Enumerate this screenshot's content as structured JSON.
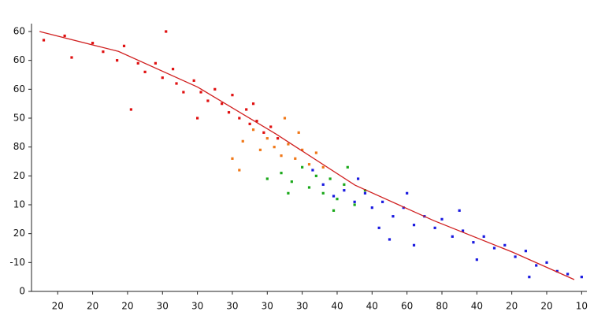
{
  "chart_data": {
    "type": "scatter",
    "xlim": [
      -0.75,
      15.15
    ],
    "ylim": [
      0,
      9
    ],
    "xticks": [
      {
        "value": 0,
        "label": "20"
      },
      {
        "value": 1,
        "label": "20"
      },
      {
        "value": 2,
        "label": "20"
      },
      {
        "value": 3,
        "label": "30"
      },
      {
        "value": 4,
        "label": "30"
      },
      {
        "value": 5,
        "label": "30"
      },
      {
        "value": 6,
        "label": "30"
      },
      {
        "value": 7,
        "label": "30"
      },
      {
        "value": 8,
        "label": "40"
      },
      {
        "value": 9,
        "label": "40"
      },
      {
        "value": 10,
        "label": "60"
      },
      {
        "value": 11,
        "label": "80"
      },
      {
        "value": 12,
        "label": "40"
      },
      {
        "value": 13,
        "label": "20"
      },
      {
        "value": 14,
        "label": "20"
      },
      {
        "value": 15,
        "label": "10"
      }
    ],
    "yticks": [
      {
        "value": 0,
        "label": "0"
      },
      {
        "value": 1,
        "label": "-10"
      },
      {
        "value": 2,
        "label": "20"
      },
      {
        "value": 3,
        "label": "10"
      },
      {
        "value": 4,
        "label": "20"
      },
      {
        "value": 5,
        "label": "80"
      },
      {
        "value": 6,
        "label": "50"
      },
      {
        "value": 7,
        "label": "60"
      },
      {
        "value": 8,
        "label": "60"
      },
      {
        "value": 9,
        "label": "60"
      }
    ],
    "series": [
      {
        "color": "#e01010",
        "x": [
          -0.4,
          0.2,
          0.4,
          1.0,
          1.3,
          1.7,
          1.9,
          2.3,
          2.5,
          2.8,
          3.0,
          3.1,
          3.4,
          3.6,
          3.9,
          4.1,
          4.3,
          4.5,
          4.7,
          4.9,
          5.0,
          5.2,
          5.4,
          5.5,
          5.7,
          5.9,
          6.1,
          2.1,
          4.0,
          6.3,
          5.6,
          3.3
        ],
        "values": [
          8.7,
          8.85,
          8.1,
          8.6,
          8.3,
          8.0,
          8.5,
          7.9,
          7.6,
          7.9,
          7.4,
          9.0,
          7.2,
          6.9,
          7.3,
          6.9,
          6.6,
          7.0,
          6.5,
          6.2,
          6.8,
          6.0,
          6.3,
          5.8,
          5.9,
          5.5,
          5.7,
          6.3,
          6.0,
          5.3,
          6.5,
          7.7
        ]
      },
      {
        "color": "#f07818",
        "x": [
          5.3,
          5.6,
          5.8,
          6.0,
          6.2,
          6.4,
          6.6,
          6.8,
          7.0,
          7.2,
          7.4,
          6.5,
          5.0,
          7.6,
          6.9,
          5.2
        ],
        "values": [
          5.2,
          5.6,
          4.9,
          5.3,
          5.0,
          4.7,
          5.1,
          4.6,
          4.9,
          4.4,
          4.8,
          6.0,
          4.6,
          4.3,
          5.5,
          4.2
        ]
      },
      {
        "color": "#1aa81a",
        "x": [
          6.4,
          6.7,
          7.0,
          7.2,
          7.4,
          7.6,
          7.8,
          8.0,
          8.2,
          8.5,
          6.0,
          7.9,
          8.8,
          8.3,
          6.6
        ],
        "values": [
          4.1,
          3.8,
          4.3,
          3.6,
          4.0,
          3.4,
          3.9,
          3.2,
          3.7,
          3.0,
          3.9,
          2.8,
          3.5,
          4.3,
          3.4
        ]
      },
      {
        "color": "#1a1ae0",
        "x": [
          7.3,
          7.6,
          7.9,
          8.2,
          8.5,
          8.8,
          9.0,
          9.3,
          9.6,
          9.9,
          10.2,
          10.5,
          10.8,
          11.0,
          11.3,
          11.6,
          11.9,
          12.2,
          12.5,
          12.8,
          13.1,
          13.4,
          13.7,
          14.0,
          14.3,
          14.6,
          15.0,
          9.5,
          10.2,
          12.0,
          13.5,
          8.6,
          11.5,
          10.0,
          9.2
        ],
        "values": [
          4.2,
          3.7,
          3.3,
          3.5,
          3.1,
          3.4,
          2.9,
          3.1,
          2.6,
          2.9,
          2.3,
          2.6,
          2.2,
          2.5,
          1.9,
          2.1,
          1.7,
          1.9,
          1.5,
          1.6,
          1.2,
          1.4,
          0.9,
          1.0,
          0.7,
          0.6,
          0.5,
          1.8,
          1.6,
          1.1,
          0.5,
          3.9,
          2.8,
          3.4,
          2.2
        ]
      }
    ],
    "trend": {
      "color": "#d02020",
      "x": [
        -0.52,
        1.74,
        4.0,
        6.25,
        8.51,
        10.77,
        13.02,
        14.79
      ],
      "values": [
        9.0,
        8.31,
        7.08,
        5.45,
        3.68,
        2.45,
        1.36,
        0.41
      ]
    }
  }
}
